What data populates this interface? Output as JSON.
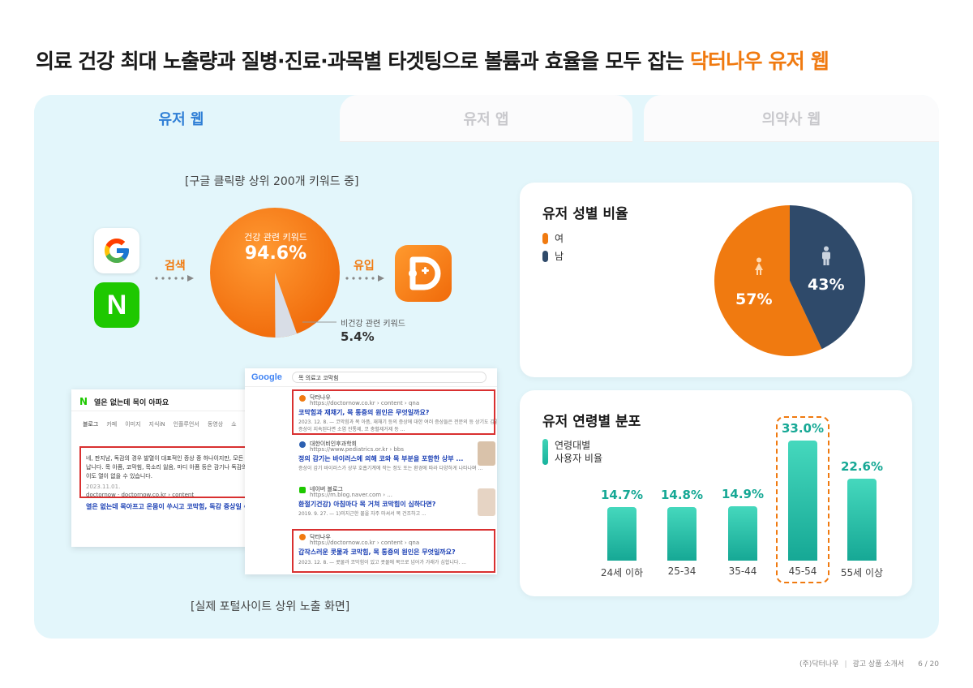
{
  "headline": {
    "main": "의료 건강 최대 노출량과 질병·진료·과목별 타겟팅으로 볼륨과 효율을 모두 잡는 ",
    "accent": "닥터나우 유저 웹",
    "accent_color": "#f07a10"
  },
  "tabs": [
    {
      "label": "유저 웹",
      "active": true
    },
    {
      "label": "유저 앱",
      "active": false
    },
    {
      "label": "의약사 웹",
      "active": false
    }
  ],
  "search_flow": {
    "caption_top": "[구글 클릭량 상위 200개 키워드 중]",
    "search_label": "검색",
    "inflow_label": "유입",
    "health_label": "건강 관련 키워드",
    "health_value": "94.6%",
    "nonhealth_label": "비건강 관련 키워드",
    "nonhealth_value": "5.4%",
    "health_share": 94.6,
    "logos": [
      "google-logo",
      "naver-logo",
      "doctornow-app-icon"
    ],
    "caption_bottom": "[실제 포털사이트 상위 노출 화면]"
  },
  "naver_screenshot": {
    "logo": "N",
    "query": "열은 없는데 목이 아파요",
    "tabs": [
      "블로그",
      "카페",
      "이미지",
      "지식iN",
      "인플루언서",
      "동영상",
      "쇼"
    ],
    "snippet_lines": [
      "네, 판지남, 독감의 경우 발열이 대표적인 증상 중 하나이지만, 모든 독감",
      "납니다. 목 아픔, 코막힘, 목소리 잃음, 마디 아픔 등은 감기나 독감의 일반",
      "이도 열이 없을 수 있습니다."
    ],
    "date": "2023.11.01.",
    "source": "doctornow · doctornow.co.kr › content",
    "link": "열은 없는데 목아프고 온몸이 쑤시고 코막힘, 독감 증상일 수 있을"
  },
  "google_screenshot": {
    "logo": "Google",
    "query": "목 의료고 코막힘",
    "results": [
      {
        "site": "닥터나우",
        "url": "https://doctornow.co.kr › content › qna",
        "title": "코막힘과 재채기, 목 통증의 원인은 무엇일까요?",
        "snippet": "2023. 12. 8. — 코막힘과 목 아픔, 재채기 등의 증상에 대한 여러 증상들은 전문의 등 상기도 감염 가능성이 있다.",
        "snippet2": "증상이 지속된다면 소염 진통제, 코 충혈제거제 등 ...",
        "highlighted": true
      },
      {
        "site": "대한이비인후과학회",
        "url": "https://www.pediatrics.or.kr › bbs",
        "title": "정의 감기는 바이러스에 의해 코와 목 부분을 포함한 상부 ...",
        "snippet": "증상이 감기 바이러스가 상부 호흡기계에 작는 정도 또는 환경에 따라 다양하게 나타나며 ...",
        "snippet2": "",
        "highlighted": false
      },
      {
        "site": "네이버 블로그",
        "url": "https://m.blog.naver.com › ...",
        "title": "환절기건강) 아침마다 목 거쳐 코막힘이 심하다면?",
        "snippet": "2019. 9. 27. — 1)미지근한 물을 자주 마셔서 목 건조하고 ...",
        "snippet2": "",
        "highlighted": false
      },
      {
        "site": "닥터나우",
        "url": "https://doctornow.co.kr › content › qna",
        "title": "갑작스러운 콧물과 코막힘, 목 통증의 원인은 무엇일까요?",
        "snippet": "2023. 12. 8. — 콧물과 코막힘이 있고 콧물에 목으로 넘어가 가래가 심합니다. ...",
        "snippet2": "",
        "highlighted": true
      }
    ]
  },
  "gender_card": {
    "title": "유저 성별 비율",
    "legend": [
      {
        "label": "여",
        "color": "#f07a10"
      },
      {
        "label": "남",
        "color": "#2f4a6a"
      }
    ],
    "chart_data": {
      "type": "pie",
      "categories": [
        "여",
        "남"
      ],
      "values": [
        57,
        43
      ],
      "labels": [
        "57%",
        "43%"
      ],
      "colors": [
        "#f07a10",
        "#2f4a6a"
      ],
      "icons": [
        "female-icon",
        "male-icon"
      ]
    }
  },
  "age_card": {
    "title": "유저 연령별 분포",
    "legend_lines": [
      "연령대별",
      "사용자 비율"
    ],
    "chart_data": {
      "type": "bar",
      "categories": [
        "24세 이하",
        "25-34",
        "35-44",
        "45-54",
        "55세 이상"
      ],
      "values": [
        14.7,
        14.8,
        14.9,
        33.0,
        22.6
      ],
      "labels": [
        "14.7%",
        "14.8%",
        "14.9%",
        "33.0%",
        "22.6%"
      ],
      "highlight_category": "45-54",
      "color": "#18b39d",
      "highlight_color": "#f07a10"
    }
  },
  "footer": {
    "company": "(주)닥터나우",
    "doc": "광고 상품 소개서",
    "page": "6 / 20"
  }
}
